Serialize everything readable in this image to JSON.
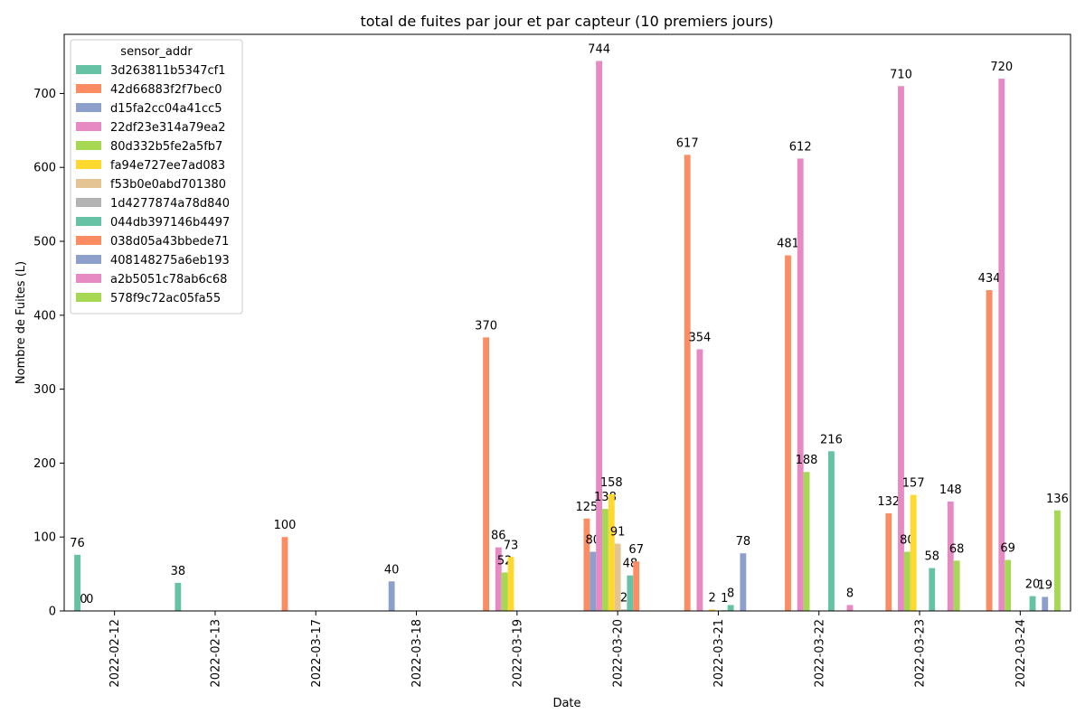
{
  "chart_data": {
    "type": "bar",
    "title": "total de fuites par jour et par capteur (10 premiers jours)",
    "xlabel": "Date",
    "ylabel": "Nombre de Fuites (L)",
    "ylim": [
      0,
      780
    ],
    "yticks": [
      0,
      100,
      200,
      300,
      400,
      500,
      600,
      700
    ],
    "grid": false,
    "legend_title": "sensor_addr",
    "legend_placement": "upper-left",
    "categories": [
      "2022-02-12",
      "2022-02-13",
      "2022-03-17",
      "2022-03-18",
      "2022-03-19",
      "2022-03-20",
      "2022-03-21",
      "2022-03-22",
      "2022-03-23",
      "2022-03-24"
    ],
    "series": [
      {
        "name": "3d263811b5347cf1",
        "color": "#66c2a5",
        "values": [
          76,
          38,
          null,
          null,
          null,
          null,
          null,
          null,
          null,
          null
        ]
      },
      {
        "name": "42d66883f2f7bec0",
        "color": "#fc8d62",
        "values": [
          0,
          null,
          100,
          null,
          370,
          125,
          617,
          481,
          132,
          434
        ]
      },
      {
        "name": "d15fa2cc04a41cc5",
        "color": "#8da0cb",
        "values": [
          0,
          null,
          null,
          40,
          null,
          80,
          null,
          null,
          null,
          null
        ]
      },
      {
        "name": "22df23e314a79ea2",
        "color": "#e78ac3",
        "values": [
          null,
          null,
          null,
          null,
          86,
          744,
          354,
          612,
          710,
          720
        ]
      },
      {
        "name": "80d332b5fe2a5fb7",
        "color": "#a6d854",
        "values": [
          null,
          null,
          null,
          null,
          52,
          138,
          null,
          188,
          80,
          69
        ]
      },
      {
        "name": "fa94e727ee7ad083",
        "color": "#ffd92f",
        "values": [
          null,
          null,
          null,
          null,
          73,
          158,
          2,
          null,
          157,
          null
        ]
      },
      {
        "name": "f53b0e0abd701380",
        "color": "#e5c494",
        "values": [
          null,
          null,
          null,
          null,
          null,
          91,
          null,
          null,
          null,
          null
        ]
      },
      {
        "name": "1d4277874a78d840",
        "color": "#b3b3b3",
        "values": [
          null,
          null,
          null,
          null,
          null,
          2,
          1,
          null,
          null,
          null
        ]
      },
      {
        "name": "044db397146b4497",
        "color": "#66c2a5",
        "values": [
          null,
          null,
          null,
          null,
          null,
          48,
          8,
          216,
          58,
          20
        ]
      },
      {
        "name": "038d05a43bbede71",
        "color": "#fc8d62",
        "values": [
          null,
          null,
          null,
          null,
          null,
          67,
          null,
          null,
          null,
          null
        ]
      },
      {
        "name": "408148275a6eb193",
        "color": "#8da0cb",
        "values": [
          null,
          null,
          null,
          null,
          null,
          null,
          78,
          null,
          null,
          19
        ]
      },
      {
        "name": "a2b5051c78ab6c68",
        "color": "#e78ac3",
        "values": [
          null,
          null,
          null,
          null,
          null,
          null,
          null,
          8,
          148,
          null
        ]
      },
      {
        "name": "578f9c72ac05fa55",
        "color": "#a6d854",
        "values": [
          null,
          null,
          null,
          null,
          null,
          null,
          null,
          null,
          68,
          136
        ]
      }
    ]
  }
}
